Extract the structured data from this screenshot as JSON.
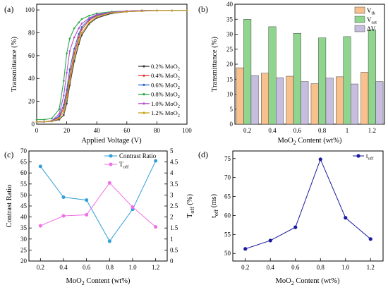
{
  "panel_labels": [
    "(a)",
    "(b)",
    "(c)",
    "(d)"
  ],
  "legend_a": [
    {
      "prefix": "0.2% MoO",
      "sub": "2",
      "color": "#3a3a3a"
    },
    {
      "prefix": "0.4% MoO",
      "sub": "2",
      "color": "#e03c3c"
    },
    {
      "prefix": "0.6% MoO",
      "sub": "2",
      "color": "#3366cc"
    },
    {
      "prefix": "0.8% MoO",
      "sub": "2",
      "color": "#2aa84a"
    },
    {
      "prefix": "1.0% MoO",
      "sub": "2",
      "color": "#b44fd0"
    },
    {
      "prefix": "1.2% MoO",
      "sub": "2",
      "color": "#c8a21a"
    }
  ],
  "chart_data": [
    {
      "type": "line",
      "panel": "(a)",
      "xlabel": "Applied Voltage (V)",
      "ylabel": "Transmittance (%)",
      "xlim": [
        0,
        100
      ],
      "ylim": [
        0,
        105
      ],
      "xticks": [
        0,
        20,
        40,
        60,
        80,
        100
      ],
      "yticks": [
        0,
        20,
        40,
        60,
        80,
        100
      ],
      "legend": "bottom-right",
      "series": [
        {
          "name": "0.2% MoO2",
          "color": "#3a3a3a",
          "points": [
            [
              0,
              2
            ],
            [
              5,
              2
            ],
            [
              10,
              2.5
            ],
            [
              15,
              4
            ],
            [
              18,
              8
            ],
            [
              20,
              18
            ],
            [
              22,
              34
            ],
            [
              25,
              55
            ],
            [
              28,
              70
            ],
            [
              30,
              78
            ],
            [
              35,
              88
            ],
            [
              40,
              93
            ],
            [
              50,
              97
            ],
            [
              60,
              98.5
            ],
            [
              70,
              99
            ],
            [
              80,
              99.5
            ],
            [
              90,
              99.5
            ],
            [
              100,
              99.5
            ]
          ]
        },
        {
          "name": "0.4% MoO2",
          "color": "#e03c3c",
          "points": [
            [
              0,
              2
            ],
            [
              5,
              2
            ],
            [
              10,
              3
            ],
            [
              15,
              6
            ],
            [
              18,
              14
            ],
            [
              20,
              26
            ],
            [
              22,
              42
            ],
            [
              25,
              62
            ],
            [
              28,
              76
            ],
            [
              30,
              83
            ],
            [
              35,
              91
            ],
            [
              40,
              95
            ],
            [
              50,
              98
            ],
            [
              60,
              99
            ],
            [
              70,
              99.5
            ],
            [
              80,
              99.5
            ],
            [
              90,
              99.5
            ],
            [
              100,
              99.5
            ]
          ]
        },
        {
          "name": "0.6% MoO2",
          "color": "#3366cc",
          "points": [
            [
              0,
              2
            ],
            [
              5,
              2
            ],
            [
              10,
              3
            ],
            [
              15,
              7
            ],
            [
              18,
              17
            ],
            [
              20,
              30
            ],
            [
              22,
              48
            ],
            [
              25,
              66
            ],
            [
              28,
              79
            ],
            [
              30,
              85
            ],
            [
              35,
              92
            ],
            [
              40,
              95.5
            ],
            [
              50,
              98
            ],
            [
              60,
              99
            ],
            [
              70,
              99.5
            ],
            [
              80,
              99.5
            ],
            [
              90,
              99.5
            ],
            [
              100,
              99.5
            ]
          ]
        },
        {
          "name": "0.8% MoO2",
          "color": "#2aa84a",
          "points": [
            [
              0,
              4
            ],
            [
              5,
              4
            ],
            [
              10,
              5
            ],
            [
              15,
              13
            ],
            [
              18,
              38
            ],
            [
              20,
              62
            ],
            [
              22,
              75
            ],
            [
              25,
              84
            ],
            [
              28,
              89
            ],
            [
              30,
              92
            ],
            [
              35,
              95
            ],
            [
              40,
              97
            ],
            [
              50,
              98.5
            ],
            [
              60,
              99
            ],
            [
              70,
              99.5
            ],
            [
              80,
              99.5
            ],
            [
              90,
              99.5
            ],
            [
              100,
              99.5
            ]
          ]
        },
        {
          "name": "1.0% MoO2",
          "color": "#b44fd0",
          "points": [
            [
              0,
              2
            ],
            [
              5,
              2
            ],
            [
              10,
              3
            ],
            [
              15,
              9
            ],
            [
              18,
              25
            ],
            [
              20,
              45
            ],
            [
              22,
              64
            ],
            [
              25,
              76
            ],
            [
              28,
              84
            ],
            [
              30,
              88
            ],
            [
              35,
              93
            ],
            [
              40,
              96
            ],
            [
              50,
              98
            ],
            [
              60,
              99
            ],
            [
              70,
              99.5
            ],
            [
              80,
              99.5
            ],
            [
              90,
              99.5
            ],
            [
              100,
              99.5
            ]
          ]
        },
        {
          "name": "1.2% MoO2",
          "color": "#c8a21a",
          "points": [
            [
              0,
              2
            ],
            [
              5,
              2
            ],
            [
              10,
              2.5
            ],
            [
              15,
              5
            ],
            [
              18,
              11
            ],
            [
              20,
              22
            ],
            [
              22,
              38
            ],
            [
              25,
              59
            ],
            [
              28,
              73
            ],
            [
              30,
              80
            ],
            [
              35,
              89
            ],
            [
              40,
              94
            ],
            [
              50,
              97.5
            ],
            [
              60,
              98.5
            ],
            [
              70,
              99
            ],
            [
              80,
              99.5
            ],
            [
              90,
              99.5
            ],
            [
              100,
              99.5
            ]
          ]
        }
      ]
    },
    {
      "type": "bar",
      "panel": "(b)",
      "xlabel": "MoO2 Content (wt%)",
      "ylabel": "Transmittance (%)",
      "categories": [
        "0.2",
        "0.4",
        "0.6",
        "0.8",
        "1",
        "1.2"
      ],
      "ylim": [
        0,
        40
      ],
      "yticks": [
        0,
        5,
        10,
        15,
        20,
        25,
        30,
        35,
        40
      ],
      "legend": "top-right",
      "series": [
        {
          "name": "Vth",
          "color": "#f7c08c",
          "values": [
            18.8,
            17.0,
            16.0,
            13.5,
            15.8,
            17.3
          ]
        },
        {
          "name": "Vsat",
          "color": "#8fd58e",
          "values": [
            35.0,
            32.5,
            30.3,
            28.8,
            29.2,
            31.5
          ]
        },
        {
          "name": "ΔV",
          "color": "#c7bedf",
          "values": [
            16.2,
            15.5,
            14.2,
            15.4,
            13.4,
            14.2
          ]
        }
      ]
    },
    {
      "type": "line",
      "panel": "(c)",
      "xlabel": "MoO2 Content (wt%)",
      "ylabel": "Contrast Ratio",
      "ylabel_right": "Toff (%)",
      "x": [
        0.2,
        0.4,
        0.6,
        0.8,
        1.0,
        1.2
      ],
      "xticks": [
        0.2,
        0.4,
        0.6,
        0.8,
        1.0,
        1.2
      ],
      "xlim": [
        0.1,
        1.3
      ],
      "ylim": [
        20,
        70
      ],
      "yticks": [
        20,
        25,
        30,
        35,
        40,
        45,
        50,
        55,
        60,
        65,
        70
      ],
      "ylim_right": [
        0,
        5
      ],
      "yticks_right": [
        0,
        0.5,
        1,
        1.5,
        2,
        2.5,
        3,
        3.5,
        4,
        4.5,
        5
      ],
      "legend": "top-right",
      "series": [
        {
          "name": "Contrast Ratio",
          "color": "#2f9fd9",
          "axis": "left",
          "values": [
            63.0,
            49.0,
            47.7,
            29.0,
            43.5,
            65.5
          ]
        },
        {
          "name": "Toff",
          "color": "#ef6fe4",
          "axis": "right",
          "values": [
            1.6,
            2.05,
            2.1,
            3.55,
            2.45,
            1.55
          ]
        }
      ]
    },
    {
      "type": "line",
      "panel": "(d)",
      "xlabel": "MoO2 Content (wt%)",
      "ylabel": "toff (ms)",
      "x": [
        0.2,
        0.4,
        0.6,
        0.8,
        1.0,
        1.2
      ],
      "xticks": [
        0.2,
        0.4,
        0.6,
        0.8,
        1.0,
        1.2
      ],
      "xlim": [
        0.1,
        1.3
      ],
      "ylim": [
        48,
        77
      ],
      "yticks": [
        50,
        55,
        60,
        65,
        70,
        75
      ],
      "legend": "top-right",
      "series": [
        {
          "name": "toff",
          "color": "#1a1a9e",
          "values": [
            51.2,
            53.4,
            56.9,
            74.8,
            59.4,
            53.8
          ]
        }
      ]
    }
  ]
}
